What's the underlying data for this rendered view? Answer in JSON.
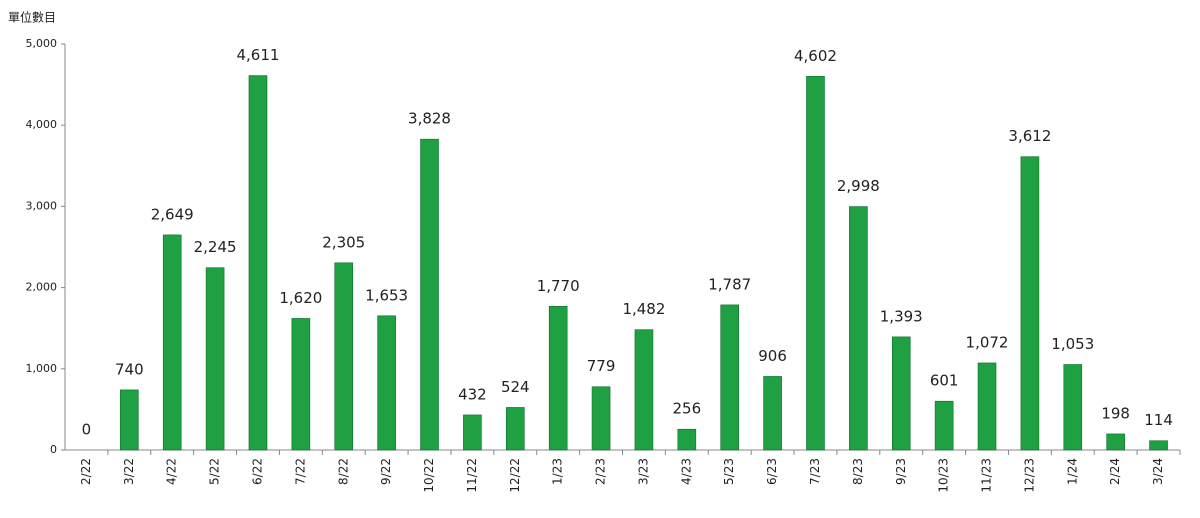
{
  "chart_data": {
    "type": "bar",
    "y_axis_title": "單位數目",
    "categories": [
      "2/22",
      "3/22",
      "4/22",
      "5/22",
      "6/22",
      "7/22",
      "8/22",
      "9/22",
      "10/22",
      "11/22",
      "12/22",
      "1/23",
      "2/23",
      "3/23",
      "4/23",
      "5/23",
      "6/23",
      "7/23",
      "8/23",
      "9/23",
      "10/23",
      "11/23",
      "12/23",
      "1/24",
      "2/24",
      "3/24"
    ],
    "values": [
      0,
      740,
      2649,
      2245,
      4611,
      1620,
      2305,
      1653,
      3828,
      432,
      524,
      1770,
      779,
      1482,
      256,
      1787,
      906,
      4602,
      2998,
      1393,
      601,
      1072,
      3612,
      1053,
      198,
      114
    ],
    "value_labels": [
      "0",
      "740",
      "2,649",
      "2,245",
      "4,611",
      "1,620",
      "2,305",
      "1,653",
      "3,828",
      "432",
      "524",
      "1,770",
      "779",
      "1,482",
      "256",
      "1,787",
      "906",
      "4,602",
      "2,998",
      "1,393",
      "601",
      "1,072",
      "3,612",
      "1,053",
      "198",
      "114"
    ],
    "color": "#1ea043",
    "ylim": [
      0,
      5000
    ],
    "yticks": [
      0,
      {
        "value": 1000,
        "label": "1,000"
      },
      {
        "value": 2000,
        "label": "2,000"
      },
      {
        "value": 3000,
        "label": "3,000"
      },
      {
        "value": 4000,
        "label": "4,000"
      },
      {
        "value": 5000,
        "label": "5,000"
      }
    ],
    "grid": false
  }
}
